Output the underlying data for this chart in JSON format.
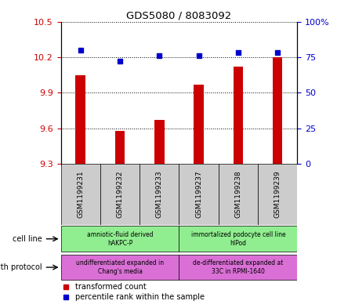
{
  "title": "GDS5080 / 8083092",
  "samples": [
    "GSM1199231",
    "GSM1199232",
    "GSM1199233",
    "GSM1199237",
    "GSM1199238",
    "GSM1199239"
  ],
  "bar_values": [
    10.05,
    9.58,
    9.67,
    9.97,
    10.12,
    10.2
  ],
  "dot_values_pct": [
    80,
    72,
    76,
    76,
    78,
    78
  ],
  "ylim_left": [
    9.3,
    10.5
  ],
  "ylim_right": [
    0,
    100
  ],
  "yticks_left": [
    9.3,
    9.6,
    9.9,
    10.2,
    10.5
  ],
  "yticks_right": [
    0,
    25,
    50,
    75,
    100
  ],
  "bar_color": "#cc0000",
  "dot_color": "#0000cc",
  "bar_base": 9.3,
  "cell_line_groups": [
    {
      "label": "amniotic-fluid derived\nhAKPC-P",
      "color": "#90ee90",
      "cols": [
        0,
        1,
        2
      ]
    },
    {
      "label": "immortalized podocyte cell line\nhIPod",
      "color": "#90ee90",
      "cols": [
        3,
        4,
        5
      ]
    }
  ],
  "growth_protocol_groups": [
    {
      "label": "undifferentiated expanded in\nChang's media",
      "color": "#da70d6",
      "cols": [
        0,
        1,
        2
      ]
    },
    {
      "label": "de-differentiated expanded at\n33C in RPMI-1640",
      "color": "#da70d6",
      "cols": [
        3,
        4,
        5
      ]
    }
  ],
  "cell_line_label": "cell line",
  "growth_protocol_label": "growth protocol",
  "legend_items": [
    "transformed count",
    "percentile rank within the sample"
  ],
  "tick_label_color_left": "#cc0000",
  "tick_label_color_right": "#0000cc",
  "n_samples": 6
}
